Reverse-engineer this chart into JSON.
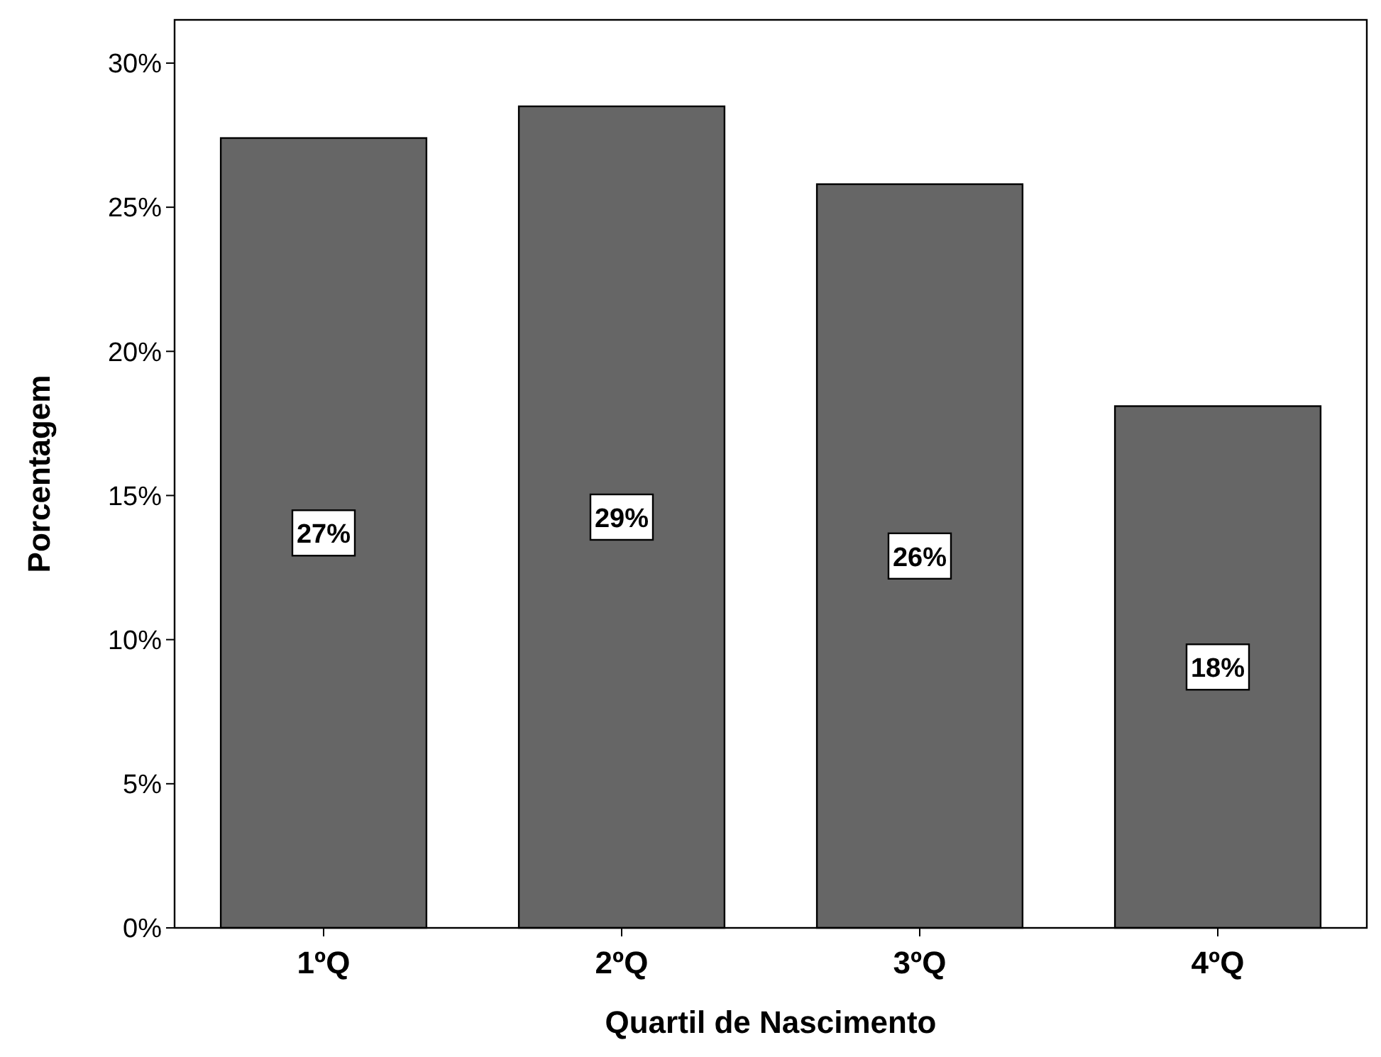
{
  "chart_data": {
    "type": "bar",
    "xlabel": "Quartil de Nascimento",
    "ylabel": "Porcentagem",
    "categories": [
      "1ºQ",
      "2ºQ",
      "3ºQ",
      "4ºQ"
    ],
    "values": [
      27.4,
      28.5,
      25.8,
      18.1
    ],
    "value_labels": [
      "27%",
      "29%",
      "26%",
      "18%"
    ],
    "color": "#666666",
    "ylim": [
      0,
      31.5
    ],
    "yticks": [
      {
        "value": 0,
        "label": "0%"
      },
      {
        "value": 5,
        "label": "5%"
      },
      {
        "value": 10,
        "label": "10%"
      },
      {
        "value": 15,
        "label": "15%"
      },
      {
        "value": 20,
        "label": "20%"
      },
      {
        "value": 25,
        "label": "25%"
      },
      {
        "value": 30,
        "label": "30%"
      }
    ],
    "grid": false
  }
}
